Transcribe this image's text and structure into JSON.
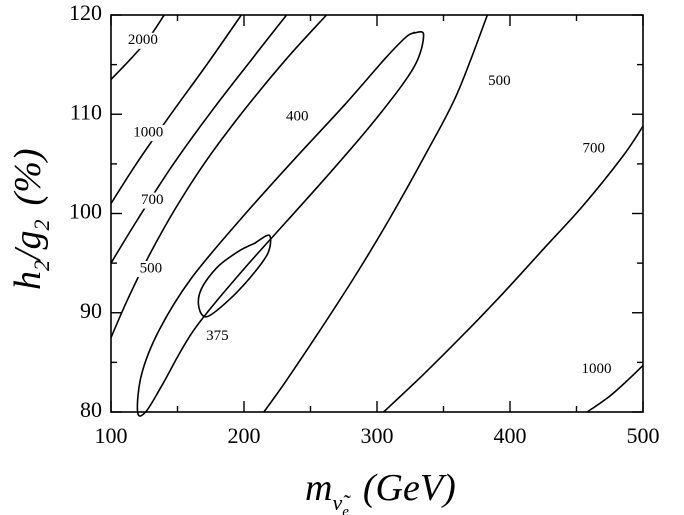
{
  "chart_data": {
    "type": "line",
    "subtype": "contour",
    "title": "",
    "xlim": [
      100,
      500
    ],
    "ylim": [
      80,
      120
    ],
    "x_ticks": [
      100,
      200,
      300,
      400,
      500
    ],
    "y_ticks": [
      80,
      90,
      100,
      110,
      120
    ],
    "x_tick_labels": [
      "100",
      "200",
      "300",
      "400",
      "500"
    ],
    "y_tick_labels": [
      "80",
      "90",
      "100",
      "110",
      "120"
    ],
    "xlabel": {
      "main": "m",
      "sub": "ν̃",
      "subsub": "e",
      "unit": "(GeV)"
    },
    "ylabel": {
      "h": "h",
      "h_sub": "2",
      "slash": "/",
      "g": "g",
      "g_sub": "2",
      "unit": "(%)"
    },
    "grid": false,
    "series": [
      {
        "level": "375",
        "closed": true,
        "x": [
          208,
          219,
          218,
          205,
          188,
          172,
          166,
          168,
          180,
          196,
          208
        ],
        "y": [
          97.0,
          97.8,
          96.0,
          93.6,
          91.2,
          89.6,
          90.6,
          92.4,
          94.6,
          96.2,
          97.0
        ]
      },
      {
        "level": "400",
        "closed": true,
        "x": [
          328,
          335,
          328,
          302,
          268,
          232,
          196,
          162,
          138,
          126,
          120,
          123,
          136,
          160,
          196,
          236,
          276,
          306,
          322,
          328
        ],
        "y": [
          118.2,
          118.0,
          114.8,
          110.0,
          104.6,
          99.2,
          93.8,
          88.2,
          82.6,
          80.0,
          80.0,
          83.8,
          88.2,
          93.4,
          99.2,
          105.2,
          111.0,
          115.6,
          117.8,
          118.2
        ]
      },
      {
        "level": "500",
        "closed": false,
        "x": [
          100,
          112,
          128,
          148,
          172,
          200,
          232,
          262
        ],
        "y": [
          87.5,
          91.2,
          95.6,
          100.4,
          105.4,
          110.4,
          115.6,
          120.0
        ]
      },
      {
        "level": "500",
        "closed": false,
        "x": [
          215,
          232,
          256,
          284,
          310,
          335,
          360,
          383
        ],
        "y": [
          80.0,
          83.2,
          88.0,
          93.8,
          99.6,
          105.6,
          112.0,
          120.0
        ]
      },
      {
        "level": "700",
        "closed": false,
        "x": [
          100,
          120,
          145,
          175,
          205,
          232
        ],
        "y": [
          95.0,
          99.4,
          104.6,
          110.2,
          115.4,
          120.0
        ]
      },
      {
        "level": "700",
        "closed": false,
        "x": [
          305,
          335,
          365,
          395,
          425,
          455,
          485,
          500
        ],
        "y": [
          80.0,
          83.8,
          87.8,
          92.0,
          96.4,
          100.8,
          105.8,
          108.8
        ]
      },
      {
        "level": "1000",
        "closed": false,
        "x": [
          100,
          120,
          145,
          172,
          198
        ],
        "y": [
          101.0,
          105.2,
          110.0,
          115.0,
          120.0
        ]
      },
      {
        "level": "1000",
        "closed": false,
        "x": [
          458,
          475,
          490,
          500
        ],
        "y": [
          80.0,
          81.6,
          83.4,
          84.7
        ]
      },
      {
        "level": "2000",
        "closed": false,
        "x": [
          100,
          115,
          128,
          140
        ],
        "y": [
          113.5,
          115.6,
          117.6,
          120.0
        ]
      }
    ],
    "contour_labels": [
      {
        "text": "2000",
        "x": 124,
        "y": 117.4
      },
      {
        "text": "1000",
        "x": 128,
        "y": 108.1
      },
      {
        "text": "700",
        "x": 131,
        "y": 101.3
      },
      {
        "text": "500",
        "x": 130,
        "y": 94.4
      },
      {
        "text": "375",
        "x": 180,
        "y": 87.6
      },
      {
        "text": "400",
        "x": 240,
        "y": 109.7
      },
      {
        "text": "500",
        "x": 392,
        "y": 113.3
      },
      {
        "text": "700",
        "x": 463,
        "y": 106.5
      },
      {
        "text": "1000",
        "x": 465,
        "y": 84.3
      }
    ]
  }
}
